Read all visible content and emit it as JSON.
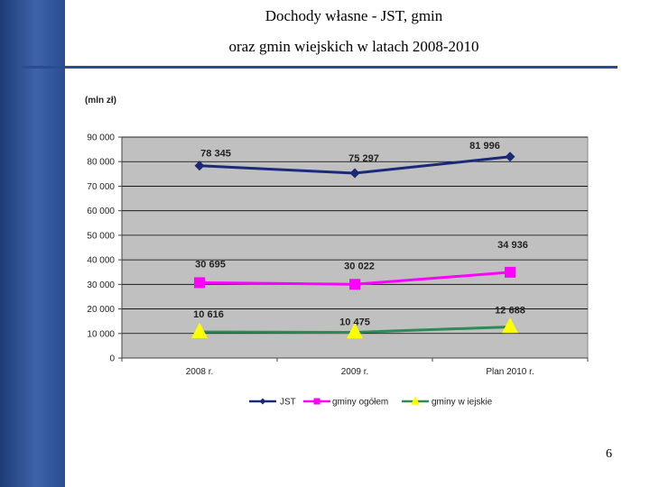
{
  "slide": {
    "title_line1": "Dochody własne - JST,  gmin",
    "title_line2": "oraz gmin wiejskich w latach 2008-2010",
    "page_number": "6",
    "accent_color": "#2a4d92"
  },
  "chart_data": {
    "type": "line",
    "title": "",
    "unit_label": "(mln zł)",
    "xlabel": "",
    "ylabel": "",
    "categories": [
      "2008 r.",
      "2009 r.",
      "Plan 2010 r."
    ],
    "ylim": [
      0,
      90000
    ],
    "yticks": [
      0,
      10000,
      20000,
      30000,
      40000,
      50000,
      60000,
      70000,
      80000,
      90000
    ],
    "ytick_labels": [
      "0",
      "10 000",
      "20 000",
      "30 000",
      "40 000",
      "50 000",
      "60 000",
      "70 000",
      "80 000",
      "90 000"
    ],
    "grid": true,
    "plot_background": "#c0c0c0",
    "legend_position": "bottom",
    "series": [
      {
        "name": "JST",
        "values": [
          78345,
          75297,
          81996
        ],
        "labels": [
          "78 345",
          "75 297",
          "81 996"
        ],
        "color": "#1b2a78",
        "marker": "diamond"
      },
      {
        "name": "gminy ogółem",
        "values": [
          30695,
          30022,
          34936
        ],
        "labels": [
          "30 695",
          "30 022",
          "34 936"
        ],
        "color": "#ff00ff",
        "marker": "square"
      },
      {
        "name": "gminy w iejskie",
        "values": [
          10616,
          10475,
          12688
        ],
        "labels": [
          "10 616",
          "10 475",
          "12 688"
        ],
        "color": "#2e8b57",
        "marker_color": "#ffff00",
        "marker": "triangle"
      }
    ]
  }
}
